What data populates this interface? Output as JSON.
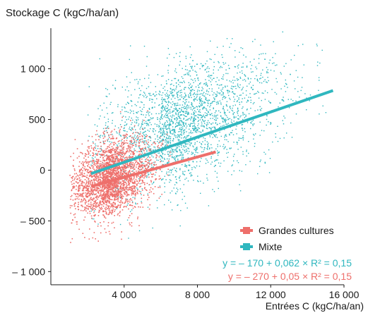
{
  "chart_data": {
    "type": "scatter",
    "ylabel": "Stockage C (kgC/ha/an)",
    "xlabel": "Entrées C (kgC/ha/an)",
    "xlim": [
      0,
      16000
    ],
    "ylim": [
      -1130,
      1400
    ],
    "x_ticks": [
      {
        "value": 4000,
        "label": "4 000"
      },
      {
        "value": 8000,
        "label": "8 000"
      },
      {
        "value": 12000,
        "label": "12 000"
      },
      {
        "value": 16000,
        "label": "16 000"
      }
    ],
    "y_ticks": [
      {
        "value": 1000,
        "label": "1 000"
      },
      {
        "value": 500,
        "label": "500"
      },
      {
        "value": 0,
        "label": "0"
      },
      {
        "value": -500,
        "label": "– 500"
      },
      {
        "value": -1000,
        "label": "– 1 000"
      }
    ],
    "grid": false,
    "legend_position": "bottom-right",
    "series": [
      {
        "name": "Grandes cultures",
        "color": "#ee6f6b",
        "regression": {
          "intercept": -270,
          "slope": 0.05,
          "r2": 0.15,
          "x_range": [
            2200,
            9000
          ],
          "equation": "y = – 270 + 0,05 × R² = 0,15"
        },
        "clusters": [
          {
            "x": [
              1000,
              6500
            ],
            "x_mode": 2800,
            "y_mean": -150,
            "y_sd": 200
          }
        ]
      },
      {
        "name": "Mixte",
        "color": "#2fb7bf",
        "regression": {
          "intercept": -170,
          "slope": 0.062,
          "r2": 0.15,
          "x_range": [
            2200,
            15400
          ],
          "equation": "y = – 170 + 0,062 × R² = 0,15"
        },
        "clusters": [
          {
            "x": [
              2000,
              15000
            ],
            "x_mode": 6000,
            "y_mean": 250,
            "y_sd": 300
          }
        ]
      }
    ]
  }
}
